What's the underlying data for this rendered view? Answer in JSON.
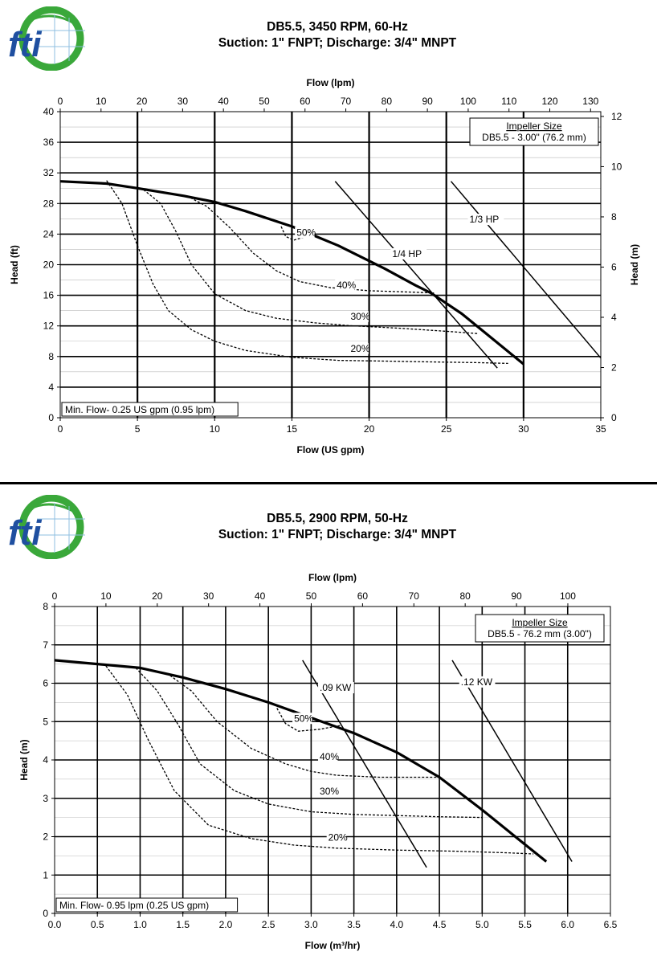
{
  "logo": {
    "text": "fti",
    "green": "#3aa83a",
    "blue": "#1f4fa0"
  },
  "chart_data": [
    {
      "type": "line",
      "title": "DB5.5, 3450 RPM, 60-Hz",
      "subtitle": "Suction: 1\" FNPT; Discharge: 3/4\" MNPT",
      "xlabel": "Flow (US gpm)",
      "x2label": "Flow (lpm)",
      "ylabel": "Head (ft)",
      "y2label": "Head (m)",
      "xlim": [
        0,
        35
      ],
      "ylim": [
        0,
        40
      ],
      "x2lim": [
        0,
        132.5
      ],
      "y2lim": [
        0,
        12.19
      ],
      "xticks": [
        0,
        5,
        10,
        15,
        20,
        25,
        30,
        35
      ],
      "xtick_labels": [
        "0",
        "5",
        "10",
        "15",
        "20",
        "25",
        "30",
        "35"
      ],
      "yticks": [
        0,
        4,
        8,
        12,
        16,
        20,
        24,
        28,
        32,
        36,
        40
      ],
      "ytick_labels": [
        "0",
        "4",
        "8",
        "12",
        "16",
        "20",
        "24",
        "28",
        "32",
        "36",
        "40"
      ],
      "x2ticks": [
        0,
        10,
        20,
        30,
        40,
        50,
        60,
        70,
        80,
        90,
        100,
        110,
        120,
        130
      ],
      "x2tick_labels": [
        "0",
        "10",
        "20",
        "30",
        "40",
        "50",
        "60",
        "70",
        "80",
        "90",
        "100",
        "110",
        "120",
        "130"
      ],
      "y2ticks": [
        0,
        2,
        4,
        6,
        8,
        10,
        12
      ],
      "y2tick_labels": [
        "0",
        "2",
        "4",
        "6",
        "8",
        "10",
        "12"
      ],
      "grid": true,
      "impeller_box": {
        "title": "Impeller Size",
        "value": "DB5.5 - 3.00\" (76.2 mm)"
      },
      "min_flow": "Min. Flow- 0.25 US gpm (0.95 lpm)",
      "head_curve": {
        "x": [
          0,
          3,
          5,
          8,
          10,
          12,
          15,
          18,
          21,
          23,
          24,
          26,
          28,
          30
        ],
        "y": [
          30.9,
          30.6,
          30.0,
          29.0,
          28.2,
          27.0,
          25.0,
          22.5,
          19.5,
          17.3,
          16.3,
          13.6,
          10.3,
          7.0
        ]
      },
      "hp_lines": [
        {
          "label": "1/4 HP",
          "x": [
            17.8,
            28.3
          ],
          "y": [
            30.9,
            6.5
          ],
          "label_x": 21.5,
          "label_y": 21.0
        },
        {
          "label": "1/3 HP",
          "x": [
            25.3,
            35.0
          ],
          "y": [
            30.9,
            7.8
          ],
          "label_x": 26.5,
          "label_y": 25.5
        }
      ],
      "efficiency_curves": [
        {
          "label": "50%",
          "label_x": 15.3,
          "label_y": 23.8,
          "x": [
            14.3,
            14.6,
            15.1,
            15.8,
            16.4
          ],
          "y": [
            25.0,
            23.7,
            23.2,
            23.6,
            24.0
          ]
        },
        {
          "label": "40%",
          "label_x": 17.9,
          "label_y": 16.9,
          "x": [
            8.2,
            9.5,
            11.0,
            12.5,
            14.0,
            15.5,
            17.5,
            20.0,
            23.0,
            24.2
          ],
          "y": [
            29.0,
            27.6,
            24.8,
            21.5,
            19.2,
            17.8,
            17.0,
            16.6,
            16.4,
            16.3
          ]
        },
        {
          "label": "30%",
          "label_x": 18.8,
          "label_y": 12.8,
          "x": [
            5.4,
            6.5,
            7.5,
            8.5,
            10.0,
            12.0,
            14.0,
            16.5,
            19.0,
            22.0,
            25.0,
            27.0
          ],
          "y": [
            29.8,
            28.0,
            24.3,
            20.0,
            16.2,
            14.0,
            13.0,
            12.4,
            12.0,
            11.7,
            11.3,
            11.0
          ]
        },
        {
          "label": "20%",
          "label_x": 18.8,
          "label_y": 8.6,
          "x": [
            3.0,
            4.0,
            5.0,
            6.0,
            7.0,
            8.5,
            10.0,
            12.0,
            15.0,
            18.0,
            21.0,
            24.0,
            27.0,
            29.0
          ],
          "y": [
            31.0,
            28.0,
            22.5,
            17.5,
            14.0,
            11.5,
            10.0,
            8.8,
            7.9,
            7.5,
            7.4,
            7.3,
            7.2,
            7.1
          ]
        }
      ]
    },
    {
      "type": "line",
      "title": "DB5.5, 2900 RPM, 50-Hz",
      "subtitle": "Suction: 1\" FNPT; Discharge: 3/4\" MNPT",
      "xlabel": "Flow (m³/hr)",
      "x2label": "Flow (lpm)",
      "ylabel": "Head (m)",
      "xlim": [
        0,
        6.5
      ],
      "ylim": [
        0,
        8
      ],
      "x2lim": [
        0,
        108.3
      ],
      "xticks": [
        0,
        0.5,
        1,
        1.5,
        2,
        2.5,
        3,
        3.5,
        4,
        4.5,
        5,
        5.5,
        6,
        6.5
      ],
      "xtick_labels": [
        "0.0",
        "0.5",
        "1.0",
        "1.5",
        "2.0",
        "2.5",
        "3.0",
        "3.5",
        "4.0",
        "4.5",
        "5.0",
        "5.5",
        "6.0",
        "6.5"
      ],
      "yticks": [
        0,
        1,
        2,
        3,
        4,
        5,
        6,
        7,
        8
      ],
      "ytick_labels": [
        "0",
        "1",
        "2",
        "3",
        "4",
        "5",
        "6",
        "7",
        "8"
      ],
      "x2ticks": [
        0,
        10,
        20,
        30,
        40,
        50,
        60,
        70,
        80,
        90,
        100
      ],
      "x2tick_labels": [
        "0",
        "10",
        "20",
        "30",
        "40",
        "50",
        "60",
        "70",
        "80",
        "90",
        "100"
      ],
      "grid": true,
      "impeller_box": {
        "title": "Impeller Size",
        "value": "DB5.5 - 76.2 mm (3.00\")"
      },
      "min_flow": "Min. Flow-  0.95 lpm (0.25 US gpm)",
      "head_curve": {
        "x": [
          0,
          0.5,
          1.0,
          1.5,
          2.0,
          2.5,
          3.0,
          3.5,
          4.0,
          4.5,
          5.0,
          5.5,
          5.75
        ],
        "y": [
          6.6,
          6.5,
          6.4,
          6.15,
          5.85,
          5.5,
          5.1,
          4.7,
          4.2,
          3.55,
          2.7,
          1.8,
          1.35
        ]
      },
      "hp_lines": [
        {
          "label": ".09 KW",
          "x": [
            2.9,
            4.35
          ],
          "y": [
            6.6,
            1.2
          ],
          "label_x": 3.1,
          "label_y": 5.8
        },
        {
          "label": ".12 KW",
          "x": [
            4.65,
            6.05
          ],
          "y": [
            6.6,
            1.35
          ],
          "label_x": 4.75,
          "label_y": 5.95
        }
      ],
      "efficiency_curves": [
        {
          "label": "50%",
          "label_x": 2.8,
          "label_y": 5.0,
          "x": [
            2.6,
            2.7,
            2.85,
            3.1,
            3.35
          ],
          "y": [
            5.35,
            4.95,
            4.75,
            4.8,
            4.9
          ]
        },
        {
          "label": "40%",
          "label_x": 3.1,
          "label_y": 4.0,
          "x": [
            1.35,
            1.6,
            1.9,
            2.3,
            2.7,
            3.0,
            3.3,
            3.8,
            4.2,
            4.5
          ],
          "y": [
            6.2,
            5.8,
            5.0,
            4.3,
            3.9,
            3.7,
            3.6,
            3.55,
            3.55,
            3.55
          ]
        },
        {
          "label": "30%",
          "label_x": 3.1,
          "label_y": 3.1,
          "x": [
            0.95,
            1.2,
            1.45,
            1.7,
            2.1,
            2.5,
            3.0,
            3.5,
            4.0,
            4.5,
            5.0
          ],
          "y": [
            6.4,
            5.8,
            4.9,
            3.9,
            3.2,
            2.85,
            2.65,
            2.58,
            2.55,
            2.52,
            2.5
          ]
        },
        {
          "label": "20%",
          "label_x": 3.2,
          "label_y": 1.9,
          "x": [
            0.6,
            0.85,
            1.1,
            1.4,
            1.8,
            2.3,
            2.8,
            3.3,
            4.0,
            4.7,
            5.3,
            5.6
          ],
          "y": [
            6.45,
            5.7,
            4.5,
            3.2,
            2.3,
            1.95,
            1.78,
            1.7,
            1.65,
            1.62,
            1.58,
            1.55
          ]
        }
      ]
    }
  ]
}
